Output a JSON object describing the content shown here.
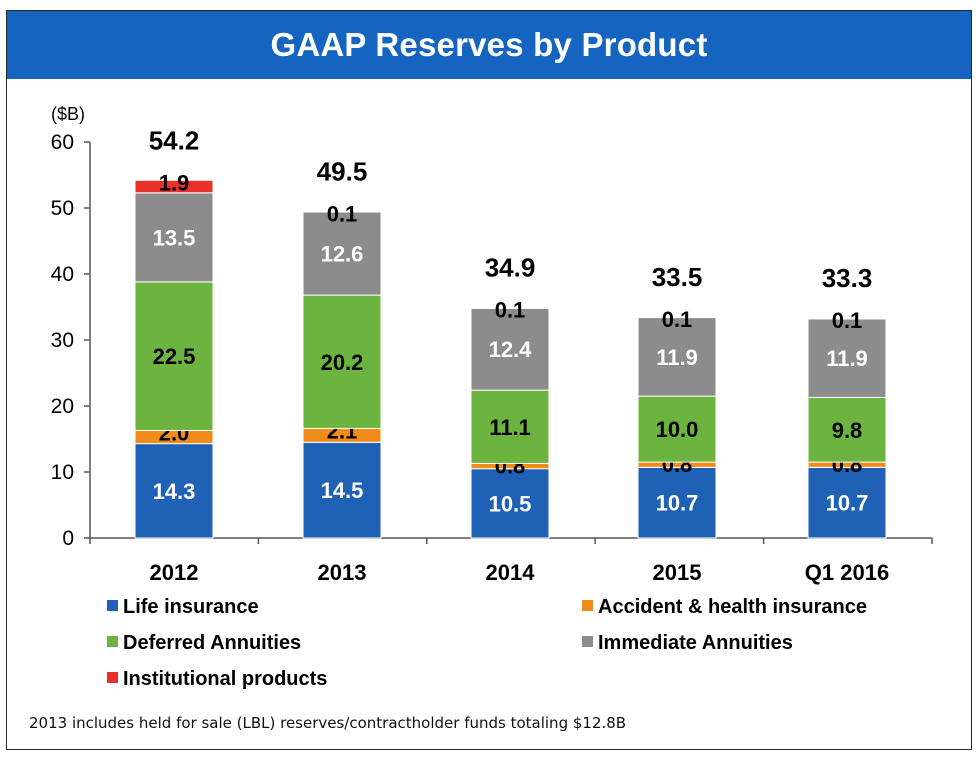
{
  "chart_data": {
    "type": "bar",
    "stacked": true,
    "title": "GAAP Reserves by Product",
    "ylabel": "($B)",
    "ylim": [
      0,
      60
    ],
    "yticks": [
      0,
      10,
      20,
      30,
      40,
      50,
      60
    ],
    "grid": false,
    "legend_position": "bottom",
    "categories": [
      "2012",
      "2013",
      "2014",
      "2015",
      "Q1 2016"
    ],
    "totals": [
      "54.2",
      "49.5",
      "34.9",
      "33.5",
      "33.3"
    ],
    "series": [
      {
        "name": "Life insurance",
        "color": "#1f62b5",
        "label_color": "#ffffff",
        "values": [
          14.3,
          14.5,
          10.5,
          10.7,
          10.7
        ],
        "labels": [
          "14.3",
          "14.5",
          "10.5",
          "10.7",
          "10.7"
        ]
      },
      {
        "name": "Accident & health insurance",
        "color": "#f08c1a",
        "label_color": "#000000",
        "values": [
          2.0,
          2.1,
          0.8,
          0.8,
          0.8
        ],
        "labels": [
          "2.0",
          "2.1",
          "0.8",
          "0.8",
          "0.8"
        ]
      },
      {
        "name": "Deferred Annuities",
        "color": "#6db33f",
        "label_color": "#000000",
        "values": [
          22.5,
          20.2,
          11.1,
          10.0,
          9.8
        ],
        "labels": [
          "22.5",
          "20.2",
          "11.1",
          "10.0",
          "9.8"
        ]
      },
      {
        "name": "Immediate Annuities",
        "color": "#8c8c8c",
        "label_color": "#ffffff",
        "values": [
          13.5,
          12.6,
          12.4,
          11.9,
          11.9
        ],
        "labels": [
          "13.5",
          "12.6",
          "12.4",
          "11.9",
          "11.9"
        ]
      },
      {
        "name": "Institutional products",
        "color": "#e8312a",
        "label_color": "#000000",
        "values": [
          1.9,
          0.1,
          0.1,
          0.1,
          0.1
        ],
        "labels": [
          "1.9",
          "0.1",
          "0.1",
          "0.1",
          "0.1"
        ]
      }
    ]
  },
  "footnote": "2013 includes held for sale (LBL) reserves/contractholder funds totaling $12.8B"
}
